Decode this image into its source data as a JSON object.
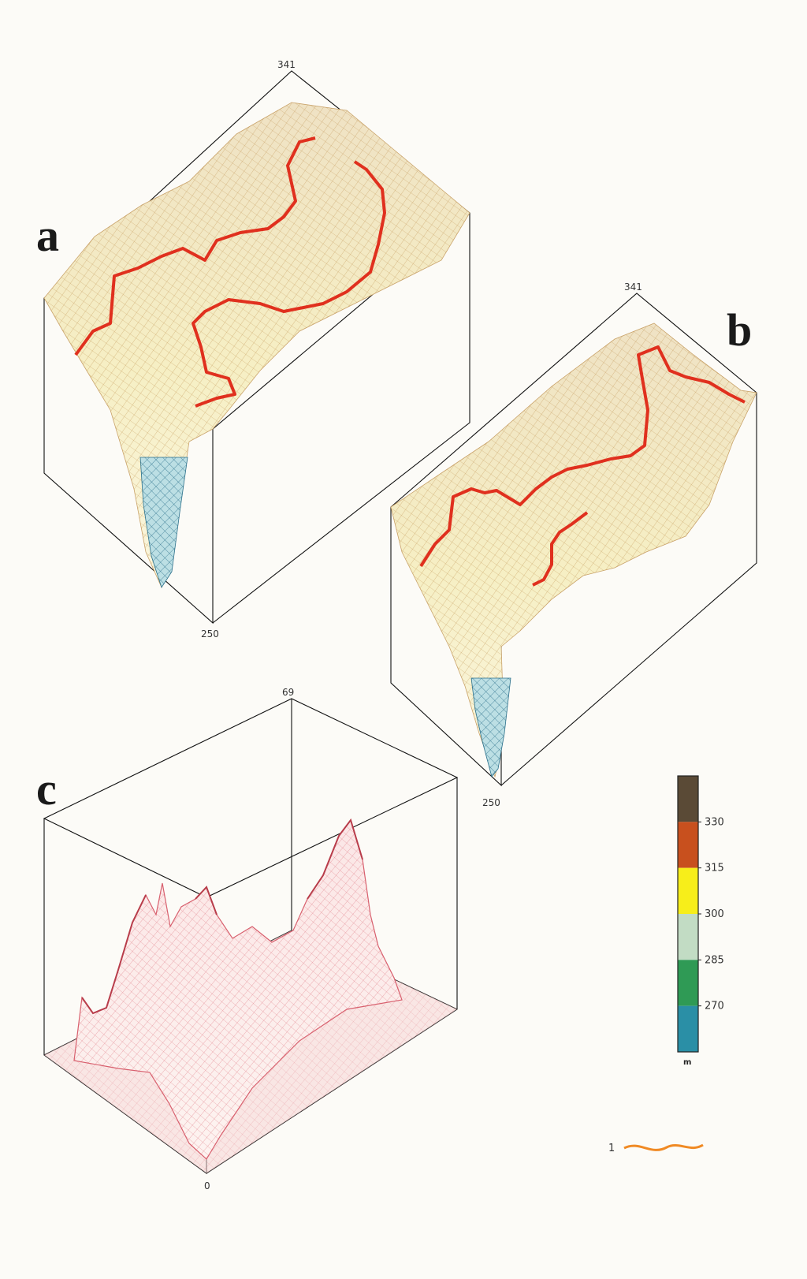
{
  "panels": {
    "a": {
      "letter": "a",
      "top_value": "341",
      "bottom_value": "250"
    },
    "b": {
      "letter": "b",
      "top_value": "341",
      "bottom_value": "250"
    },
    "c": {
      "letter": "c",
      "top_value": "69",
      "bottom_value": "0"
    }
  },
  "legend": {
    "unit": "m",
    "ticks": [
      "330",
      "315",
      "300",
      "285",
      "270"
    ],
    "bands": [
      {
        "color": "#5a4a36"
      },
      {
        "color": "#c8501e"
      },
      {
        "color": "#f7ee1a"
      },
      {
        "color": "#c2dcc4"
      },
      {
        "color": "#2f9a55"
      },
      {
        "color": "#2a8fa6"
      }
    ],
    "line_key_label": "1",
    "line_key_color": "#f08a24"
  },
  "colors": {
    "contour": "#e0301e",
    "mesh_a_b": "#c8a36a",
    "mesh_c": "#e07080",
    "box": "#111111"
  }
}
